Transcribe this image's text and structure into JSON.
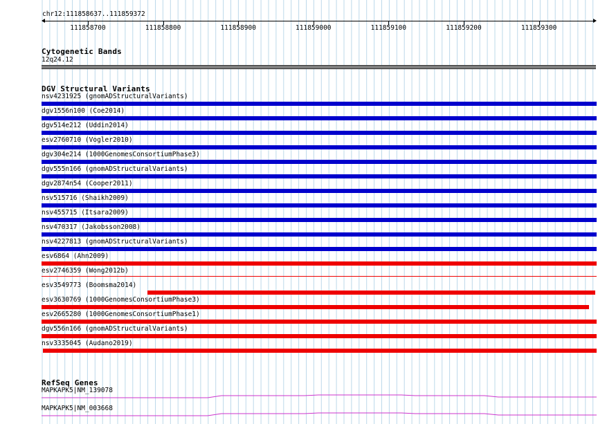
{
  "location": "chr12:111858637..111859372",
  "ruler_ticks": [
    "111858700",
    "111858800",
    "111858900",
    "111859000",
    "111859100",
    "111859200",
    "111859300"
  ],
  "cyto": {
    "title": "Cytogenetic Bands",
    "band": "12q24.12"
  },
  "dgv": {
    "title": "DGV Structural Variants",
    "variants": [
      {
        "label": "nsv4231925 (gnomADStructuralVariants)",
        "color": "#0000cc"
      },
      {
        "label": "dgv1556n100 (Coe2014)",
        "color": "#0000cc"
      },
      {
        "label": "dgv514e212 (Uddin2014)",
        "color": "#0000cc"
      },
      {
        "label": "esv2760710 (Vogler2010)",
        "color": "#0000cc"
      },
      {
        "label": "dgv304e214 (1000GenomesConsortiumPhase3)",
        "color": "#0000cc"
      },
      {
        "label": "dgv555n166 (gnomADStructuralVariants)",
        "color": "#0000cc"
      },
      {
        "label": "dgv2874n54 (Cooper2011)",
        "color": "#0000cc"
      },
      {
        "label": "nsv515716 (Shaikh2009)",
        "color": "#0000cc"
      },
      {
        "label": "nsv455715 (Itsara2009)",
        "color": "#0000cc"
      },
      {
        "label": "nsv470317 (Jakobsson2008)",
        "color": "#0000cc"
      },
      {
        "label": "nsv4227813 (gnomADStructuralVariants)",
        "color": "#0000cc"
      },
      {
        "label": "esv6864 (Ahn2009)",
        "color": "#ee0000"
      },
      {
        "label": "esv2746359 (Wong2012b)",
        "color": "#ee0000"
      },
      {
        "label": "esv3549773 (Boomsma2014)",
        "color": "#ee0000"
      },
      {
        "label": "esv3630769 (1000GenomesConsortiumPhase3)",
        "color": "#ee0000"
      },
      {
        "label": "esv2665280 (1000GenomesConsortiumPhase1)",
        "color": "#ee0000"
      },
      {
        "label": "dgv556n166 (gnomADStructuralVariants)",
        "color": "#ee0000"
      },
      {
        "label": "nsv3335045 (Audano2019)",
        "color": "#ee0000"
      }
    ]
  },
  "refseq": {
    "title": "RefSeq Genes",
    "genes": [
      {
        "label": "MAPKAPK5|NM_139078",
        "color": "#cc33cc"
      },
      {
        "label": "MAPKAPK5|NM_003668",
        "color": "#cc33cc"
      }
    ]
  },
  "grid_color": "#bcd8ea"
}
